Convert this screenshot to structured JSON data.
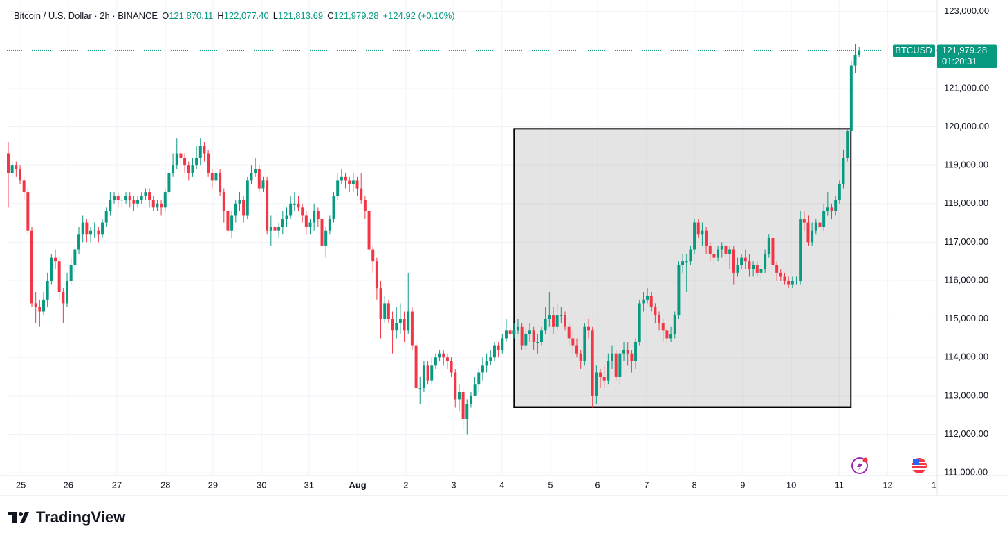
{
  "chart_data": {
    "type": "candlestick",
    "title": "Bitcoin / U.S. Dollar · 2h · BINANCE",
    "ohlc_header": [
      {
        "label": "O",
        "value": "121,870.11"
      },
      {
        "label": "H",
        "value": "122,077.40"
      },
      {
        "label": "L",
        "value": "121,813.69"
      },
      {
        "label": "C",
        "value": "121,979.28"
      }
    ],
    "change": "+124.92 (+0.10%)",
    "price_tag": {
      "symbol": "BTCUSD",
      "price": "121,979.28",
      "countdown": "01:20:31"
    },
    "brand": "TradingView",
    "up_color": "#089981",
    "down_color": "#f23645",
    "grid": true,
    "xlim": [
      -0.35,
      236.9
    ],
    "xticks": [
      {
        "value": 3.2,
        "label": "25"
      },
      {
        "value": 15.3,
        "label": "26"
      },
      {
        "value": 27.7,
        "label": "27"
      },
      {
        "value": 40.1,
        "label": "28"
      },
      {
        "value": 52.2,
        "label": "29"
      },
      {
        "value": 64.6,
        "label": "30"
      },
      {
        "value": 76.7,
        "label": "31"
      },
      {
        "value": 89.1,
        "label": "Aug"
      },
      {
        "value": 101.4,
        "label": "2"
      },
      {
        "value": 113.6,
        "label": "3"
      },
      {
        "value": 125.9,
        "label": "4"
      },
      {
        "value": 138.3,
        "label": "5"
      },
      {
        "value": 150.3,
        "label": "6"
      },
      {
        "value": 162.8,
        "label": "7"
      },
      {
        "value": 175.0,
        "label": "8"
      },
      {
        "value": 187.3,
        "label": "9"
      },
      {
        "value": 199.7,
        "label": "10"
      },
      {
        "value": 211.9,
        "label": "11"
      },
      {
        "value": 224.3,
        "label": "12"
      },
      {
        "value": 236.1,
        "label": "1"
      }
    ],
    "ylim": [
      110930,
      123300
    ],
    "yticks": [
      {
        "value": 111000,
        "label": "111,000.00"
      },
      {
        "value": 112000,
        "label": "112,000.00"
      },
      {
        "value": 113000,
        "label": "113,000.00"
      },
      {
        "value": 114000,
        "label": "114,000.00"
      },
      {
        "value": 115000,
        "label": "115,000.00"
      },
      {
        "value": 116000,
        "label": "116,000.00"
      },
      {
        "value": 117000,
        "label": "117,000.00"
      },
      {
        "value": 118000,
        "label": "118,000.00"
      },
      {
        "value": 119000,
        "label": "119,000.00"
      },
      {
        "value": 120000,
        "label": "120,000.00"
      },
      {
        "value": 121000,
        "label": "121,000.00"
      },
      {
        "value": 123000,
        "label": "123,000.00"
      }
    ],
    "rectangle": {
      "x": [
        129.0,
        214.9
      ],
      "y": [
        112700,
        119950
      ]
    },
    "open": [
      119300,
      118800,
      119000,
      118900,
      118600,
      118300,
      117300,
      115400,
      115300,
      115200,
      115500,
      116000,
      116600,
      116500,
      115700,
      115400,
      116000,
      116400,
      116800,
      117200,
      117500,
      117200,
      117300,
      117300,
      117200,
      117500,
      117800,
      118100,
      118200,
      118100,
      118100,
      118200,
      118100,
      118000,
      118100,
      118200,
      118300,
      118100,
      117900,
      118000,
      117900,
      118300,
      118800,
      119000,
      119300,
      119200,
      119000,
      118800,
      119000,
      119200,
      119500,
      119300,
      118800,
      118600,
      118800,
      118300,
      117800,
      117300,
      117700,
      118000,
      118100,
      117700,
      118600,
      118800,
      118900,
      118400,
      118600,
      117300,
      117400,
      117300,
      117400,
      117600,
      117700,
      118000,
      118000,
      117900,
      117700,
      117400,
      117500,
      117800,
      117600,
      116900,
      117300,
      117600,
      118200,
      118600,
      118700,
      118600,
      118500,
      118600,
      118400,
      118100,
      117800,
      116800,
      116500,
      115800,
      115000,
      115400,
      115000,
      114700,
      114900,
      115000,
      114700,
      115200,
      114300,
      113200,
      113200,
      113800,
      113400,
      113800,
      114000,
      114100,
      114000,
      113900,
      113600,
      112900,
      113100,
      112400,
      112800,
      113000,
      113300,
      113600,
      113800,
      113900,
      114000,
      114300,
      114200,
      114500,
      114700,
      114600,
      114700,
      114800,
      114300,
      114600,
      114700,
      114400,
      114400,
      114700,
      115000,
      115100,
      114800,
      115100,
      115100,
      114800,
      114500,
      114300,
      114100,
      113900,
      114800,
      114700,
      113000,
      113600,
      113500,
      113400,
      113900,
      114100,
      113500,
      114100,
      114200,
      114100,
      113900,
      114400,
      115400,
      115500,
      115600,
      115300,
      115100,
      114900,
      114700,
      114500,
      114600,
      115100,
      116400,
      116500,
      116500,
      116800,
      117500,
      117200,
      117300,
      116900,
      116700,
      116600,
      116800,
      116900,
      116700,
      116800,
      116200,
      116400,
      116600,
      116500,
      116300,
      116400,
      116200,
      116300,
      116700,
      117100,
      116400,
      116200,
      116100,
      116000,
      115900,
      116000,
      116000,
      117600,
      117500,
      117000,
      117300,
      117500,
      117400,
      117800,
      117900,
      117800,
      118100,
      118500,
      119200,
      119900,
      121600,
      121870.11
    ],
    "high": [
      119600,
      119100,
      119100,
      119000,
      118700,
      118400,
      117400,
      115700,
      115500,
      115700,
      116200,
      116700,
      116800,
      116600,
      115800,
      116200,
      116600,
      116900,
      117400,
      117700,
      117600,
      117400,
      117500,
      117400,
      117600,
      117900,
      118300,
      118300,
      118300,
      118200,
      118300,
      118300,
      118200,
      118200,
      118300,
      118400,
      118400,
      118200,
      118100,
      118100,
      118400,
      118900,
      119300,
      119700,
      119500,
      119300,
      119100,
      119200,
      119500,
      119700,
      119600,
      119400,
      118900,
      119000,
      118900,
      118400,
      117900,
      117800,
      118100,
      118300,
      118200,
      118700,
      119000,
      119200,
      119000,
      118700,
      118700,
      117700,
      117600,
      117500,
      117800,
      117900,
      118200,
      118300,
      118200,
      118000,
      117800,
      117600,
      118000,
      117900,
      117700,
      117400,
      117700,
      118300,
      118800,
      118900,
      118800,
      118700,
      118800,
      118700,
      118800,
      118200,
      117900,
      116900,
      116600,
      116000,
      115600,
      115500,
      115200,
      115300,
      115400,
      115200,
      116200,
      115300,
      114400,
      113500,
      113900,
      113900,
      114000,
      114100,
      114200,
      114200,
      114100,
      114000,
      113700,
      113300,
      113200,
      112900,
      113100,
      113500,
      113700,
      114000,
      114100,
      114200,
      114400,
      114400,
      114600,
      115000,
      114800,
      114900,
      115000,
      114900,
      114700,
      114900,
      114800,
      114600,
      114800,
      115300,
      115700,
      115300,
      115400,
      115300,
      115200,
      114900,
      114700,
      114500,
      114200,
      114900,
      115000,
      114800,
      113800,
      113700,
      113800,
      114100,
      114300,
      114200,
      114200,
      114400,
      114400,
      114200,
      114500,
      115500,
      115700,
      115800,
      115700,
      115400,
      115200,
      115000,
      114800,
      114800,
      115200,
      116500,
      116700,
      116700,
      116900,
      117600,
      117600,
      117500,
      117400,
      117000,
      116800,
      116900,
      117000,
      117000,
      116900,
      116900,
      116600,
      116700,
      116800,
      116700,
      116500,
      116500,
      116400,
      116800,
      117200,
      117200,
      116500,
      116300,
      116200,
      116100,
      116100,
      116100,
      117800,
      117800,
      117700,
      117500,
      117600,
      117700,
      118000,
      118300,
      118000,
      118200,
      118600,
      119400,
      119950,
      121700,
      122150,
      122077.4
    ],
    "low": [
      117900,
      118700,
      118700,
      118500,
      118100,
      117200,
      115300,
      114900,
      114800,
      115100,
      115300,
      115900,
      116300,
      115500,
      114900,
      115300,
      115900,
      116200,
      116700,
      117000,
      117000,
      117000,
      117100,
      117000,
      117100,
      117400,
      117700,
      118000,
      117900,
      117900,
      118000,
      117900,
      117800,
      117900,
      118000,
      118100,
      117900,
      117800,
      117800,
      117700,
      117800,
      118200,
      118700,
      118900,
      119000,
      118800,
      118600,
      118700,
      118900,
      119000,
      119100,
      118700,
      118400,
      118500,
      118200,
      117500,
      117200,
      117100,
      117500,
      117800,
      117500,
      117600,
      118500,
      118700,
      118300,
      118300,
      117200,
      116900,
      117000,
      117100,
      117200,
      117400,
      117600,
      117800,
      117800,
      117500,
      117200,
      117200,
      117300,
      117400,
      115800,
      116600,
      117200,
      117500,
      118100,
      118500,
      118400,
      118300,
      118300,
      118200,
      118000,
      117600,
      116700,
      116200,
      115500,
      114500,
      114900,
      114900,
      114100,
      114500,
      114600,
      114400,
      114600,
      114200,
      113100,
      112800,
      113100,
      113300,
      113300,
      113700,
      113900,
      113800,
      113700,
      113500,
      112700,
      112600,
      112100,
      112000,
      112700,
      113000,
      113100,
      113400,
      113600,
      113800,
      113900,
      114000,
      114100,
      114400,
      114500,
      114500,
      114600,
      114200,
      114200,
      114400,
      114200,
      114100,
      114300,
      114600,
      114800,
      114600,
      114700,
      114900,
      114700,
      114300,
      114100,
      114000,
      113700,
      113800,
      114500,
      112700,
      112800,
      113200,
      113200,
      113300,
      113700,
      113400,
      113300,
      113900,
      113800,
      113600,
      113700,
      114300,
      115200,
      115400,
      115200,
      114900,
      114700,
      114400,
      114300,
      114400,
      114500,
      115000,
      116200,
      115700,
      116400,
      116700,
      117100,
      116900,
      116700,
      116500,
      116400,
      116500,
      116600,
      116500,
      116300,
      115900,
      116100,
      116300,
      116300,
      116100,
      116100,
      116100,
      116000,
      116200,
      116600,
      116300,
      116000,
      116000,
      115900,
      115800,
      115800,
      115900,
      115900,
      117300,
      116900,
      116900,
      117200,
      117300,
      117300,
      117700,
      117600,
      117700,
      118000,
      118400,
      119100,
      119850,
      121400,
      121813.69
    ],
    "close": [
      118800,
      119000,
      118900,
      118600,
      118300,
      117300,
      115400,
      115300,
      115200,
      115500,
      116000,
      116600,
      116500,
      115700,
      115400,
      116000,
      116400,
      116800,
      117200,
      117500,
      117200,
      117300,
      117300,
      117200,
      117500,
      117800,
      118100,
      118200,
      118100,
      118100,
      118200,
      118100,
      118000,
      118100,
      118200,
      118300,
      118100,
      117900,
      118000,
      117900,
      118300,
      118800,
      119000,
      119300,
      119200,
      119000,
      118800,
      119000,
      119200,
      119500,
      119300,
      118800,
      118600,
      118800,
      118300,
      117800,
      117300,
      117700,
      118000,
      118100,
      117700,
      118600,
      118800,
      118900,
      118400,
      118600,
      117300,
      117400,
      117300,
      117400,
      117600,
      117700,
      118000,
      118000,
      117900,
      117700,
      117400,
      117500,
      117800,
      117600,
      116900,
      117300,
      117600,
      118200,
      118600,
      118700,
      118600,
      118500,
      118600,
      118400,
      118100,
      117800,
      116800,
      116500,
      115800,
      115000,
      115400,
      115000,
      114700,
      114900,
      115000,
      114700,
      115200,
      114300,
      113200,
      113200,
      113800,
      113400,
      113800,
      114000,
      114100,
      114000,
      113900,
      113600,
      112900,
      113100,
      112400,
      112800,
      113000,
      113300,
      113600,
      113800,
      113900,
      114000,
      114300,
      114200,
      114500,
      114700,
      114600,
      114700,
      114800,
      114300,
      114600,
      114700,
      114400,
      114400,
      114700,
      115000,
      115100,
      114800,
      115100,
      115100,
      114800,
      114500,
      114300,
      114100,
      113900,
      114800,
      114700,
      113000,
      113600,
      113500,
      113400,
      113900,
      114100,
      113500,
      114100,
      114200,
      114100,
      113900,
      114400,
      115400,
      115500,
      115600,
      115300,
      115100,
      114900,
      114700,
      114500,
      114600,
      115100,
      116400,
      116500,
      116500,
      116800,
      117500,
      117200,
      117300,
      116900,
      116700,
      116600,
      116800,
      116900,
      116700,
      116800,
      116200,
      116400,
      116600,
      116500,
      116300,
      116400,
      116200,
      116300,
      116700,
      117100,
      116400,
      116200,
      116100,
      116000,
      115900,
      116000,
      116000,
      117600,
      117500,
      117000,
      117300,
      117500,
      117400,
      117800,
      117900,
      117800,
      118100,
      118500,
      119200,
      119900,
      121600,
      121870.11,
      121979.28
    ]
  }
}
